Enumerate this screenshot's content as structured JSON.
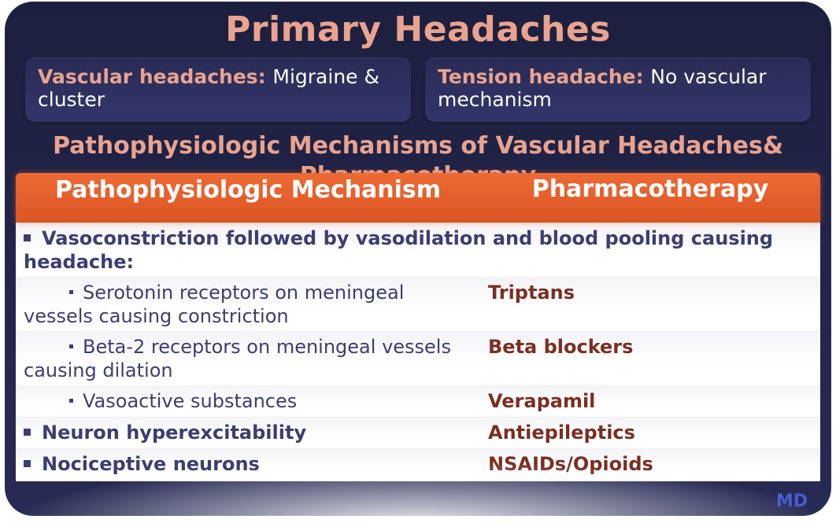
{
  "colors": {
    "panel_bg_top": "#1d1f3f",
    "panel_bg_bottom": "#272a54",
    "accent_salmon": "#e9a38f",
    "header_orange_top": "#ec6a33",
    "header_orange_bottom": "#dc5525",
    "text_navy": "#3c3e70",
    "drug_maroon": "#7b2f21",
    "link_blue": "#4d5bd0",
    "white": "#ffffff"
  },
  "title": "Primary Headaches",
  "top_boxes": [
    {
      "label": "Vascular headaches:",
      "desc": " Migraine & cluster"
    },
    {
      "label": "Tension headache:",
      "desc": " No vascular mechanism"
    }
  ],
  "section_title": "Pathophysiologic Mechanisms of Vascular Headaches& Pharmacotherapy",
  "table": {
    "headers": {
      "left": "Pathophysiologic Mechanism",
      "right": "Pharmacotherapy"
    },
    "rows": [
      {
        "type": "full",
        "left_prefix": "bullet",
        "left": "Vasoconstriction followed by vasodilation and blood pooling causing headache:",
        "right": ""
      },
      {
        "type": "sub",
        "left": "Serotonin receptors on meningeal vessels causing constriction",
        "right": "Triptans",
        "right_class": "drug"
      },
      {
        "type": "sub",
        "left": "Beta-2 receptors on meningeal vessels causing dilation",
        "right": "Beta blockers",
        "right_class": "drug"
      },
      {
        "type": "sub",
        "left": "Vasoactive substances",
        "right": "Verapamil",
        "right_class": "drug"
      },
      {
        "type": "main",
        "left_prefix": "bullet",
        "left": "Neuron hyperexcitability",
        "right": "Antiepileptics",
        "right_class": "drug"
      },
      {
        "type": "main_cut",
        "left_prefix": "bullet",
        "left": "Nociceptive neurons",
        "right": "NSAIDs/Opioids",
        "right_class": "drug"
      }
    ]
  },
  "watermark": "MD"
}
